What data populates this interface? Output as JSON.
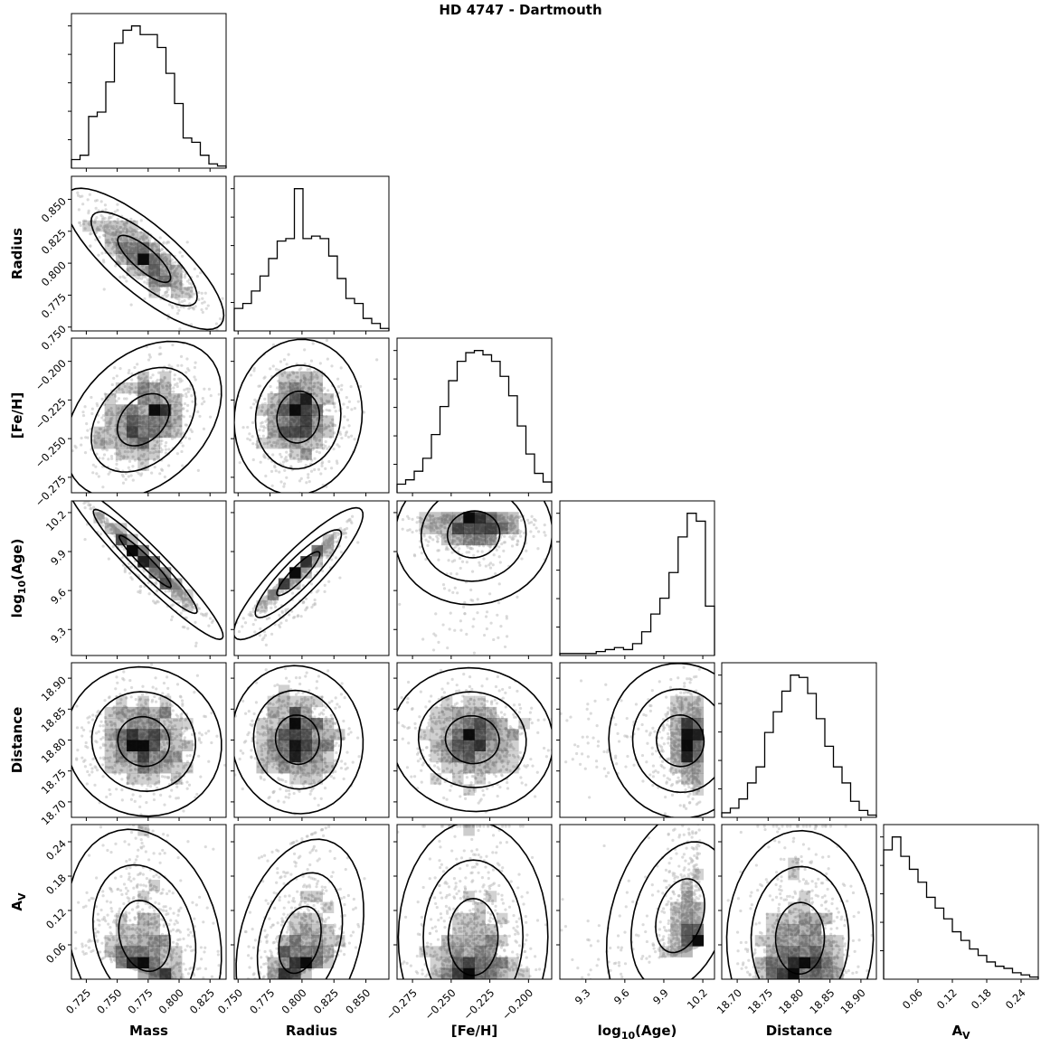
{
  "chart_data": {
    "type": "corner",
    "title": "HD 4747 - Dartmouth",
    "parameters": [
      {
        "key": "mass",
        "label": "Mass",
        "ticks": [
          0.725,
          0.75,
          0.775,
          0.8,
          0.825
        ],
        "tick_labels": [
          "0.725",
          "0.750",
          "0.775",
          "0.800",
          "0.825"
        ],
        "range": [
          0.713,
          0.838
        ],
        "mean": 0.772,
        "std": 0.021
      },
      {
        "key": "radius",
        "label": "Radius",
        "ticks": [
          0.75,
          0.775,
          0.8,
          0.825,
          0.85
        ],
        "tick_labels": [
          "0.750",
          "0.775",
          "0.800",
          "0.825",
          "0.850"
        ],
        "range": [
          0.747,
          0.868
        ],
        "mean": 0.797,
        "std": 0.017
      },
      {
        "key": "feh",
        "label": "[Fe/H]",
        "ticks": [
          -0.275,
          -0.25,
          -0.225,
          -0.2
        ],
        "tick_labels": [
          "−0.275",
          "−0.250",
          "−0.225",
          "−0.200"
        ],
        "range": [
          -0.285,
          -0.185
        ],
        "mean": -0.236,
        "std": 0.017
      },
      {
        "key": "logage",
        "label_main": "log",
        "label_sub": "10",
        "label_tail": "(Age)",
        "ticks": [
          9.3,
          9.6,
          9.9,
          10.2
        ],
        "tick_labels": [
          "9.3",
          "9.6",
          "9.9",
          "10.2"
        ],
        "range": [
          9.1,
          10.29
        ],
        "mode": 10.15
      },
      {
        "key": "distance",
        "label": "Distance",
        "ticks": [
          18.7,
          18.75,
          18.8,
          18.85,
          18.9
        ],
        "tick_labels": [
          "18.70",
          "18.75",
          "18.80",
          "18.85",
          "18.90"
        ],
        "range": [
          18.675,
          18.925
        ],
        "mean": 18.8,
        "std": 0.04
      },
      {
        "key": "av",
        "label_main": "A",
        "label_sub": "V",
        "label_tail": "",
        "ticks": [
          0.06,
          0.12,
          0.18,
          0.24
        ],
        "tick_labels": [
          "0.06",
          "0.12",
          "0.18",
          "0.24"
        ],
        "range": [
          0.0,
          0.27
        ],
        "scale": 0.07
      }
    ],
    "histograms": {
      "mass": [
        2,
        3,
        12,
        13,
        20,
        29,
        32,
        33,
        31,
        31,
        28,
        22,
        15,
        7,
        6,
        3,
        1,
        0.5
      ],
      "radius": [
        9,
        11,
        16,
        22,
        29,
        36,
        37,
        57,
        37,
        38,
        37,
        30,
        21,
        13,
        11,
        5,
        3,
        1
      ],
      "feh": [
        4,
        6,
        10,
        16,
        27,
        40,
        52,
        61,
        65,
        66,
        64,
        61,
        54,
        45,
        31,
        18,
        9,
        5
      ],
      "logage": [
        1,
        1,
        1,
        1,
        2,
        3,
        4,
        3,
        6,
        12,
        21,
        29,
        42,
        60,
        72,
        68,
        25
      ],
      "distance": [
        2,
        4,
        8,
        15,
        22,
        37,
        46,
        55,
        62,
        61,
        54,
        43,
        31,
        22,
        15,
        7,
        3,
        1
      ],
      "av": [
        60,
        66,
        57,
        51,
        45,
        38,
        33,
        28,
        22,
        18,
        14,
        11,
        8,
        6,
        5,
        3,
        2,
        1
      ]
    },
    "correlations": {
      "radius|mass": -0.75,
      "logage|mass": -0.95,
      "logage|radius": 0.92,
      "feh|mass": 0.35,
      "av|mass": -0.3,
      "av|radius": 0.45,
      "av|logage": 0.4
    },
    "contour_levels": [
      0.393,
      0.865,
      0.989
    ],
    "colors": {
      "line": "#000000",
      "points": "#bdbdbd",
      "density": "#000000"
    }
  }
}
